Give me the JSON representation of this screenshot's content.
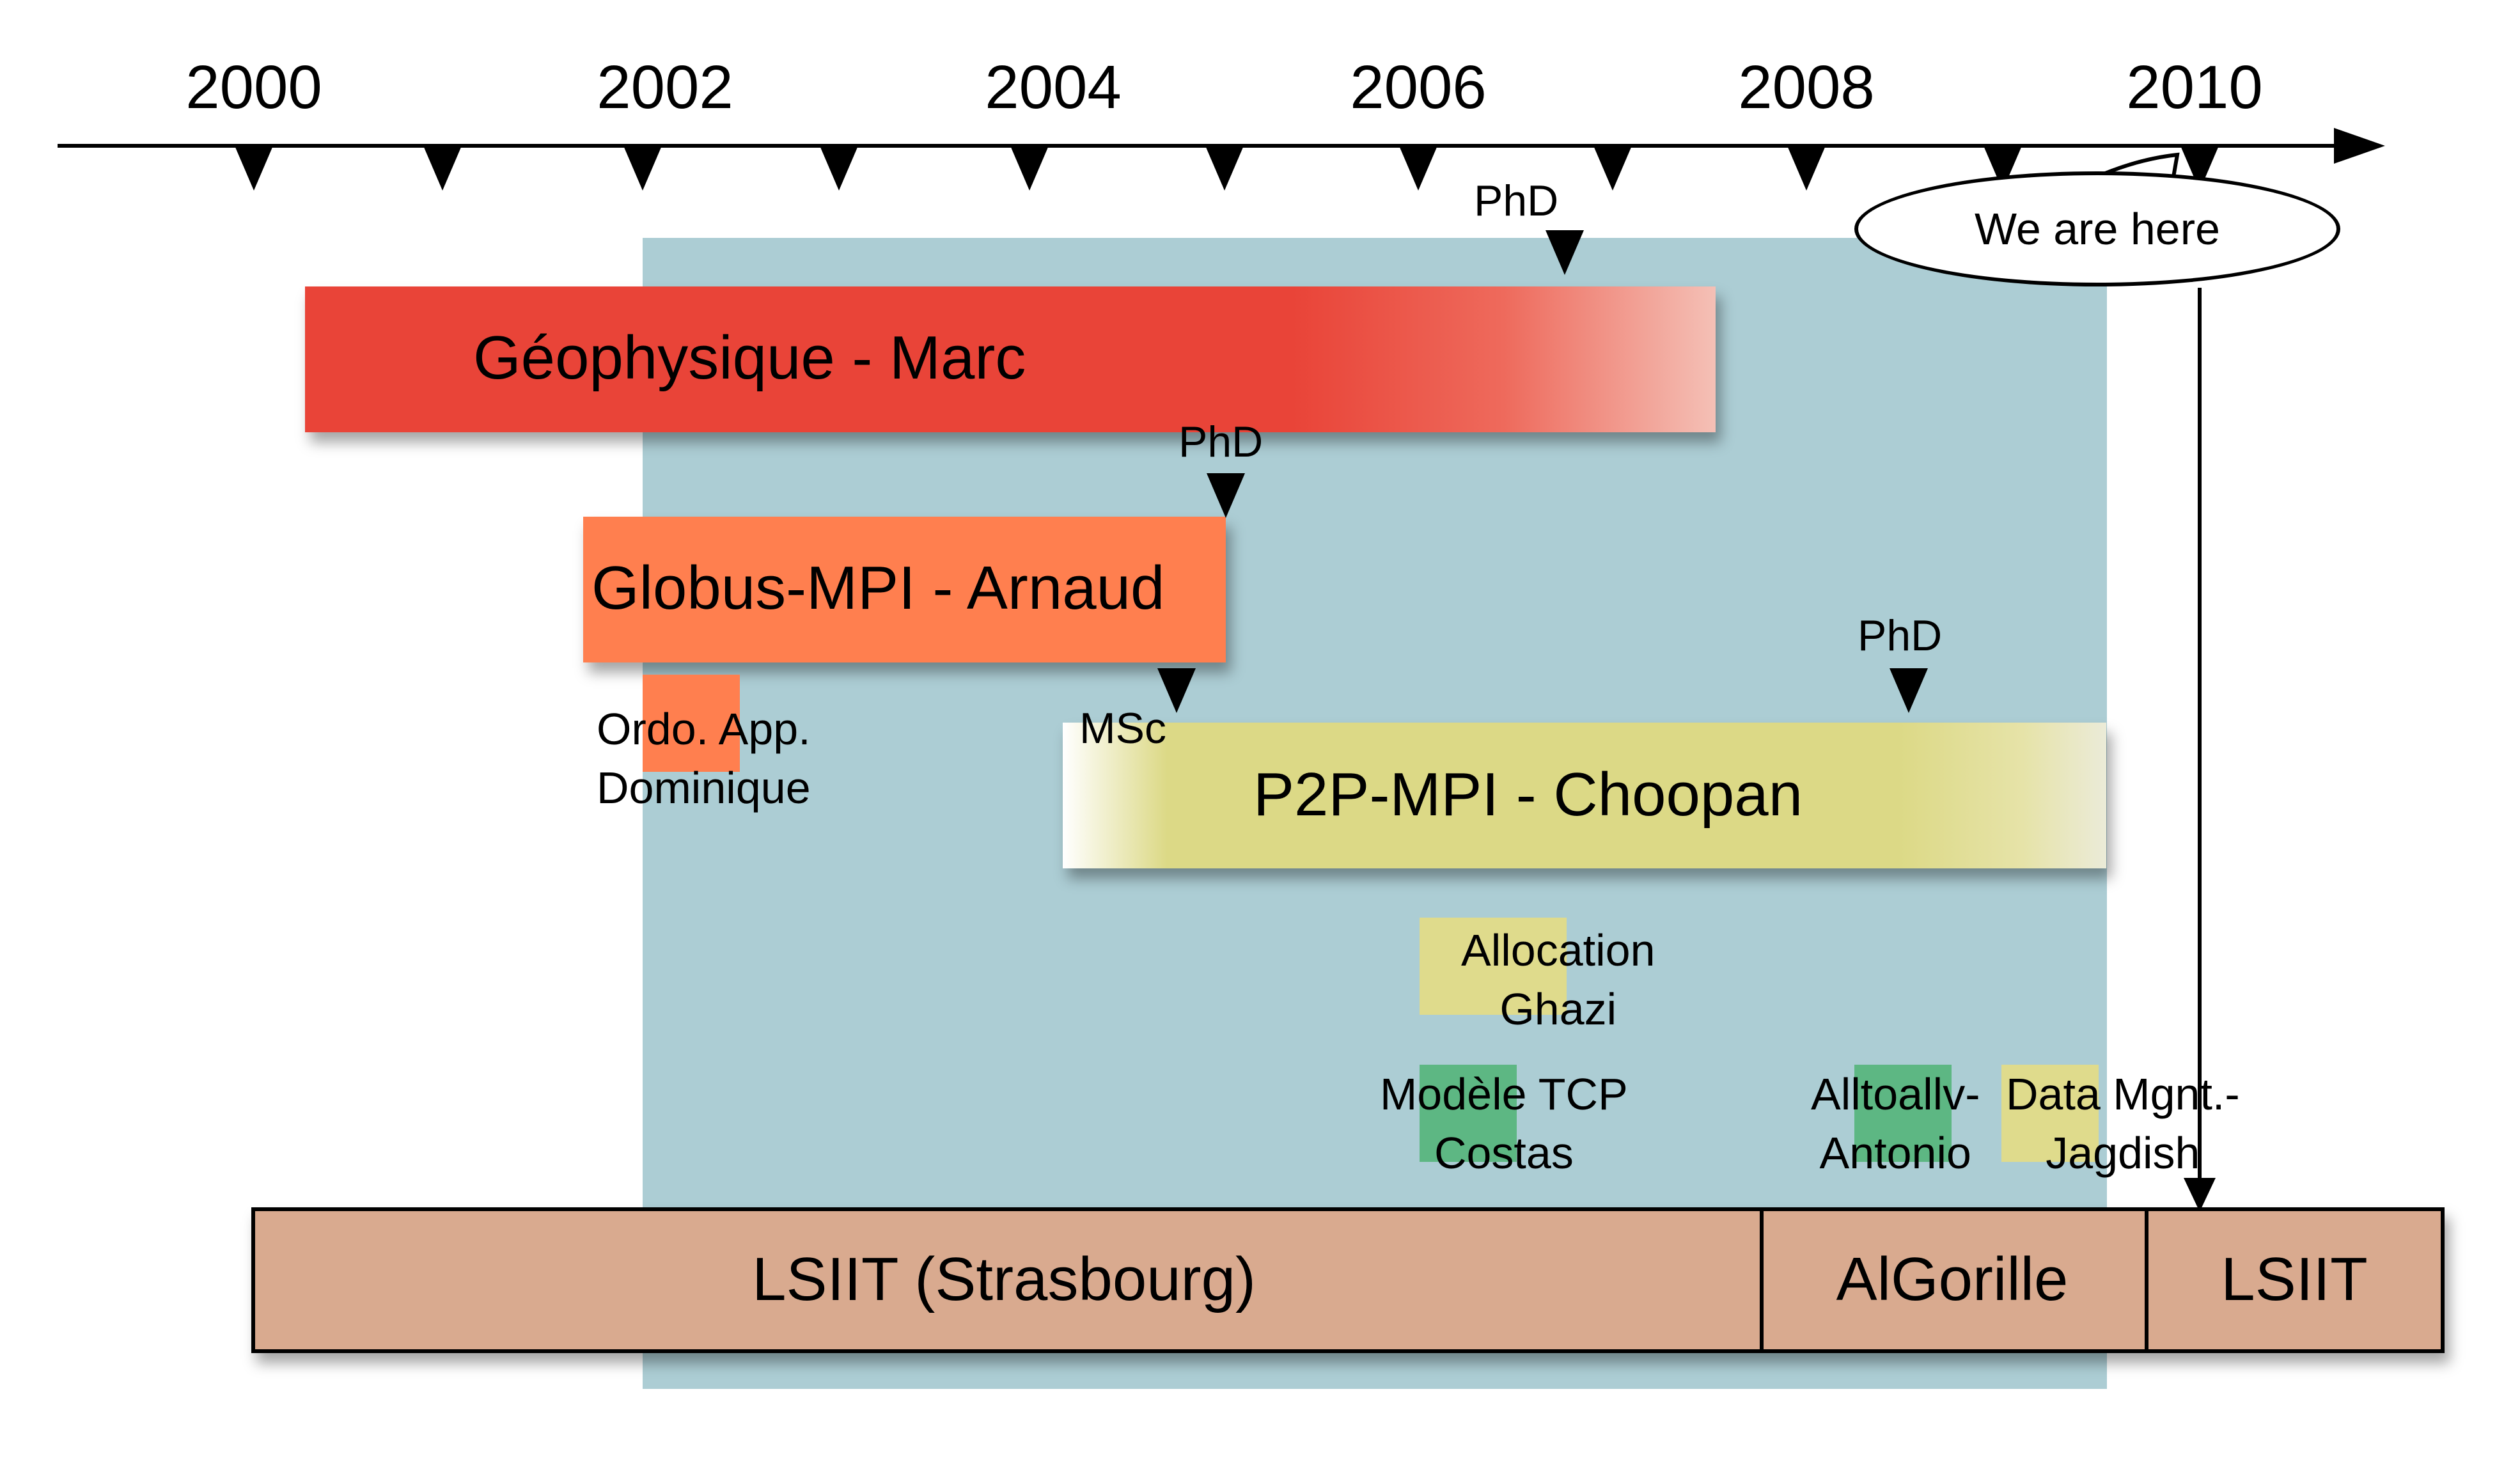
{
  "timeline": {
    "years": [
      "2000",
      "2002",
      "2004",
      "2006",
      "2008",
      "2010"
    ]
  },
  "markers": {
    "phd_marc": "PhD",
    "phd_arnaud": "PhD",
    "msc_choopan": "MSc",
    "phd_choopan": "PhD"
  },
  "callout": {
    "text": "We are here"
  },
  "projects": {
    "geophysique": "Géophysique - Marc",
    "globus": "Globus-MPI - Arnaud",
    "ordo": {
      "line1": "Ordo. App.",
      "line2": "Dominique"
    },
    "p2p": "P2P-MPI - Choopan",
    "allocation": {
      "line1": "Allocation",
      "line2": "Ghazi"
    },
    "modele": {
      "line1": "Modèle TCP",
      "line2": "Costas"
    },
    "alltoall": {
      "line1": "Alltoallv-",
      "line2": "Antonio"
    },
    "datamgnt": {
      "line1": "Data Mgnt.-",
      "line2": "Jagdish"
    }
  },
  "organizations": {
    "lsiit_strasbourg": "LSIIT (Strasbourg)",
    "algorille": "AlGorille",
    "lsiit": "LSIIT"
  },
  "colors": {
    "background_period": "#a9cbd3",
    "geophysique": "#e94438",
    "globus": "#ff7f4f",
    "p2p": "#dcd986",
    "green": "#5db783",
    "yellow": "#dfdb8c",
    "org_bar": "#d9aa8f"
  }
}
